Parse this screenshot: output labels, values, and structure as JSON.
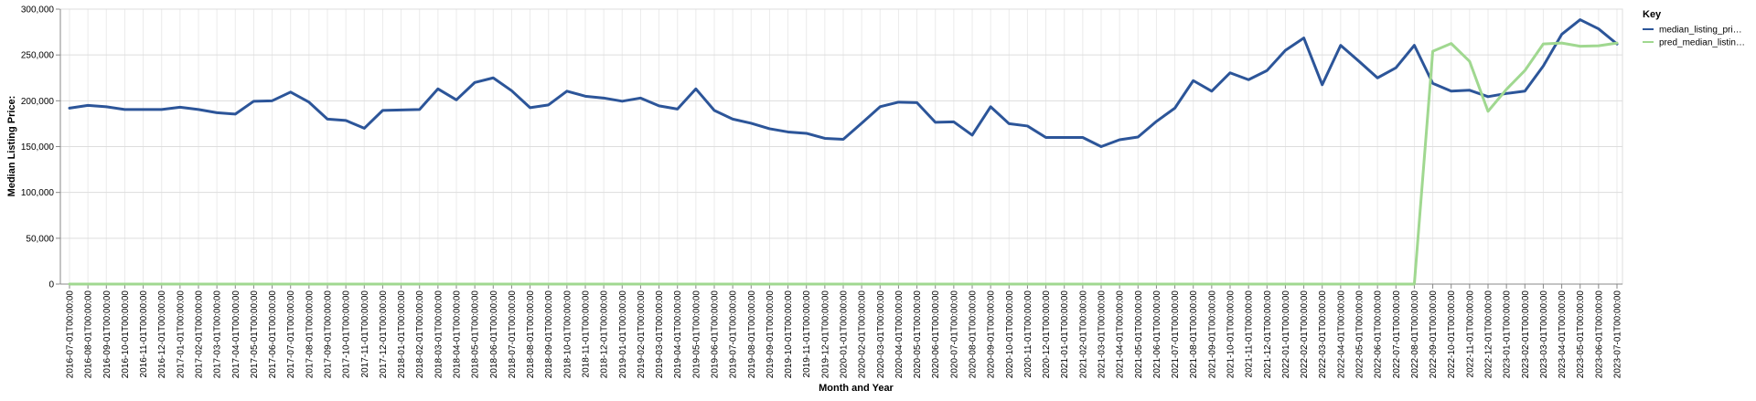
{
  "chart_data": {
    "type": "line",
    "xlabel": "Month and Year",
    "ylabel": "Median Listing Price:",
    "ylim": [
      0,
      300000
    ],
    "yticks": [
      0,
      50000,
      100000,
      150000,
      200000,
      250000,
      300000
    ],
    "ytick_labels": [
      "0",
      "50,000",
      "100,000",
      "150,000",
      "200,000",
      "250,000",
      "300,000"
    ],
    "grid": true,
    "legend": {
      "title": "Key",
      "placement": "right"
    },
    "x": [
      "2016-07-01T00:00:00",
      "2016-08-01T00:00:00",
      "2016-09-01T00:00:00",
      "2016-10-01T00:00:00",
      "2016-11-01T00:00:00",
      "2016-12-01T00:00:00",
      "2017-01-01T00:00:00",
      "2017-02-01T00:00:00",
      "2017-03-01T00:00:00",
      "2017-04-01T00:00:00",
      "2017-05-01T00:00:00",
      "2017-06-01T00:00:00",
      "2017-07-01T00:00:00",
      "2017-08-01T00:00:00",
      "2017-09-01T00:00:00",
      "2017-10-01T00:00:00",
      "2017-11-01T00:00:00",
      "2017-12-01T00:00:00",
      "2018-01-01T00:00:00",
      "2018-02-01T00:00:00",
      "2018-03-01T00:00:00",
      "2018-04-01T00:00:00",
      "2018-05-01T00:00:00",
      "2018-06-01T00:00:00",
      "2018-07-01T00:00:00",
      "2018-08-01T00:00:00",
      "2018-09-01T00:00:00",
      "2018-10-01T00:00:00",
      "2018-11-01T00:00:00",
      "2018-12-01T00:00:00",
      "2019-01-01T00:00:00",
      "2019-02-01T00:00:00",
      "2019-03-01T00:00:00",
      "2019-04-01T00:00:00",
      "2019-05-01T00:00:00",
      "2019-06-01T00:00:00",
      "2019-07-01T00:00:00",
      "2019-08-01T00:00:00",
      "2019-09-01T00:00:00",
      "2019-10-01T00:00:00",
      "2019-11-01T00:00:00",
      "2019-12-01T00:00:00",
      "2020-01-01T00:00:00",
      "2020-02-01T00:00:00",
      "2020-03-01T00:00:00",
      "2020-04-01T00:00:00",
      "2020-05-01T00:00:00",
      "2020-06-01T00:00:00",
      "2020-07-01T00:00:00",
      "2020-08-01T00:00:00",
      "2020-09-01T00:00:00",
      "2020-10-01T00:00:00",
      "2020-11-01T00:00:00",
      "2020-12-01T00:00:00",
      "2021-01-01T00:00:00",
      "2021-02-01T00:00:00",
      "2021-03-01T00:00:00",
      "2021-04-01T00:00:00",
      "2021-05-01T00:00:00",
      "2021-06-01T00:00:00",
      "2021-07-01T00:00:00",
      "2021-08-01T00:00:00",
      "2021-09-01T00:00:00",
      "2021-10-01T00:00:00",
      "2021-11-01T00:00:00",
      "2021-12-01T00:00:00",
      "2022-01-01T00:00:00",
      "2022-02-01T00:00:00",
      "2022-03-01T00:00:00",
      "2022-04-01T00:00:00",
      "2022-05-01T00:00:00",
      "2022-06-01T00:00:00",
      "2022-07-01T00:00:00",
      "2022-08-01T00:00:00",
      "2022-09-01T00:00:00",
      "2022-10-01T00:00:00",
      "2022-11-01T00:00:00",
      "2022-12-01T00:00:00",
      "2023-01-01T00:00:00",
      "2023-02-01T00:00:00",
      "2023-03-01T00:00:00",
      "2023-04-01T00:00:00",
      "2023-05-01T00:00:00",
      "2023-06-01T00:00:00",
      "2023-07-01T00:00:00"
    ],
    "series": [
      {
        "name": "median_listing_pri…",
        "color": "#2c5599",
        "values": [
          192000,
          195000,
          193500,
          190500,
          190500,
          190500,
          193000,
          190500,
          187000,
          185500,
          199500,
          200000,
          209500,
          198500,
          180000,
          178500,
          170000,
          189500,
          190000,
          190500,
          213000,
          201000,
          220000,
          225000,
          211000,
          192500,
          195500,
          210500,
          205000,
          203000,
          199500,
          203000,
          194500,
          191000,
          213000,
          189500,
          180000,
          175500,
          169500,
          166000,
          164500,
          159000,
          158000,
          175500,
          193500,
          198500,
          198000,
          176500,
          177000,
          162500,
          193500,
          175000,
          172500,
          160000,
          160000,
          160000,
          150000,
          157500,
          160500,
          177500,
          192000,
          222000,
          210500,
          230500,
          223000,
          233000,
          255000,
          268500,
          217500,
          260500,
          243000,
          225000,
          236000,
          260500,
          219000,
          210500,
          211500,
          204500,
          208000,
          210500,
          238000,
          272500,
          288500,
          278500,
          262000
        ]
      },
      {
        "name": "pred_median_listin…",
        "color": "#a0d890",
        "values": [
          0,
          0,
          0,
          0,
          0,
          0,
          0,
          0,
          0,
          0,
          0,
          0,
          0,
          0,
          0,
          0,
          0,
          0,
          0,
          0,
          0,
          0,
          0,
          0,
          0,
          0,
          0,
          0,
          0,
          0,
          0,
          0,
          0,
          0,
          0,
          0,
          0,
          0,
          0,
          0,
          0,
          0,
          0,
          0,
          0,
          0,
          0,
          0,
          0,
          0,
          0,
          0,
          0,
          0,
          0,
          0,
          0,
          0,
          0,
          0,
          0,
          0,
          0,
          0,
          0,
          0,
          0,
          0,
          0,
          0,
          0,
          0,
          0,
          0,
          254000,
          262500,
          243000,
          188500,
          212500,
          233000,
          262000,
          263000,
          259500,
          260000,
          263000
        ]
      }
    ]
  }
}
